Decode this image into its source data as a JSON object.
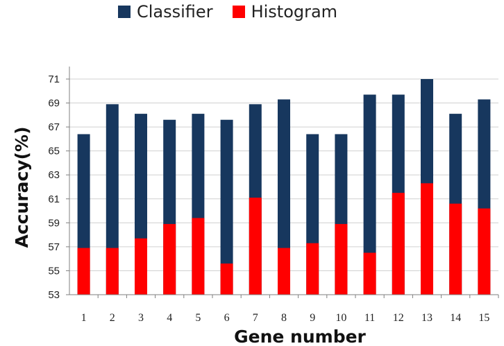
{
  "colors": {
    "classifier": "#17375e",
    "histogram": "#ff0000",
    "grid": "#d0d0d0",
    "axis": "#7f7f7f"
  },
  "chart_data": {
    "type": "bar",
    "stacked": "overlay",
    "categories": [
      "1",
      "2",
      "3",
      "4",
      "5",
      "6",
      "7",
      "8",
      "9",
      "10",
      "11",
      "12",
      "13",
      "14",
      "15"
    ],
    "series": [
      {
        "name": "Classifier",
        "values": [
          66.4,
          68.9,
          68.1,
          67.6,
          68.1,
          67.6,
          68.9,
          69.3,
          66.4,
          66.4,
          69.7,
          69.7,
          71.0,
          68.1,
          69.3
        ]
      },
      {
        "name": "Histogram",
        "values": [
          56.9,
          56.9,
          57.7,
          58.9,
          59.4,
          55.6,
          61.1,
          56.9,
          57.3,
          58.9,
          56.5,
          61.5,
          62.3,
          60.6,
          60.2
        ]
      }
    ],
    "title": "",
    "xlabel": "Gene number",
    "ylabel": "Accuracy(%)",
    "ylim": [
      53,
      71
    ],
    "yticks": [
      "53",
      "55",
      "57",
      "59",
      "61",
      "63",
      "65",
      "67",
      "69",
      "71"
    ],
    "grid": true,
    "legend_position": "top"
  }
}
